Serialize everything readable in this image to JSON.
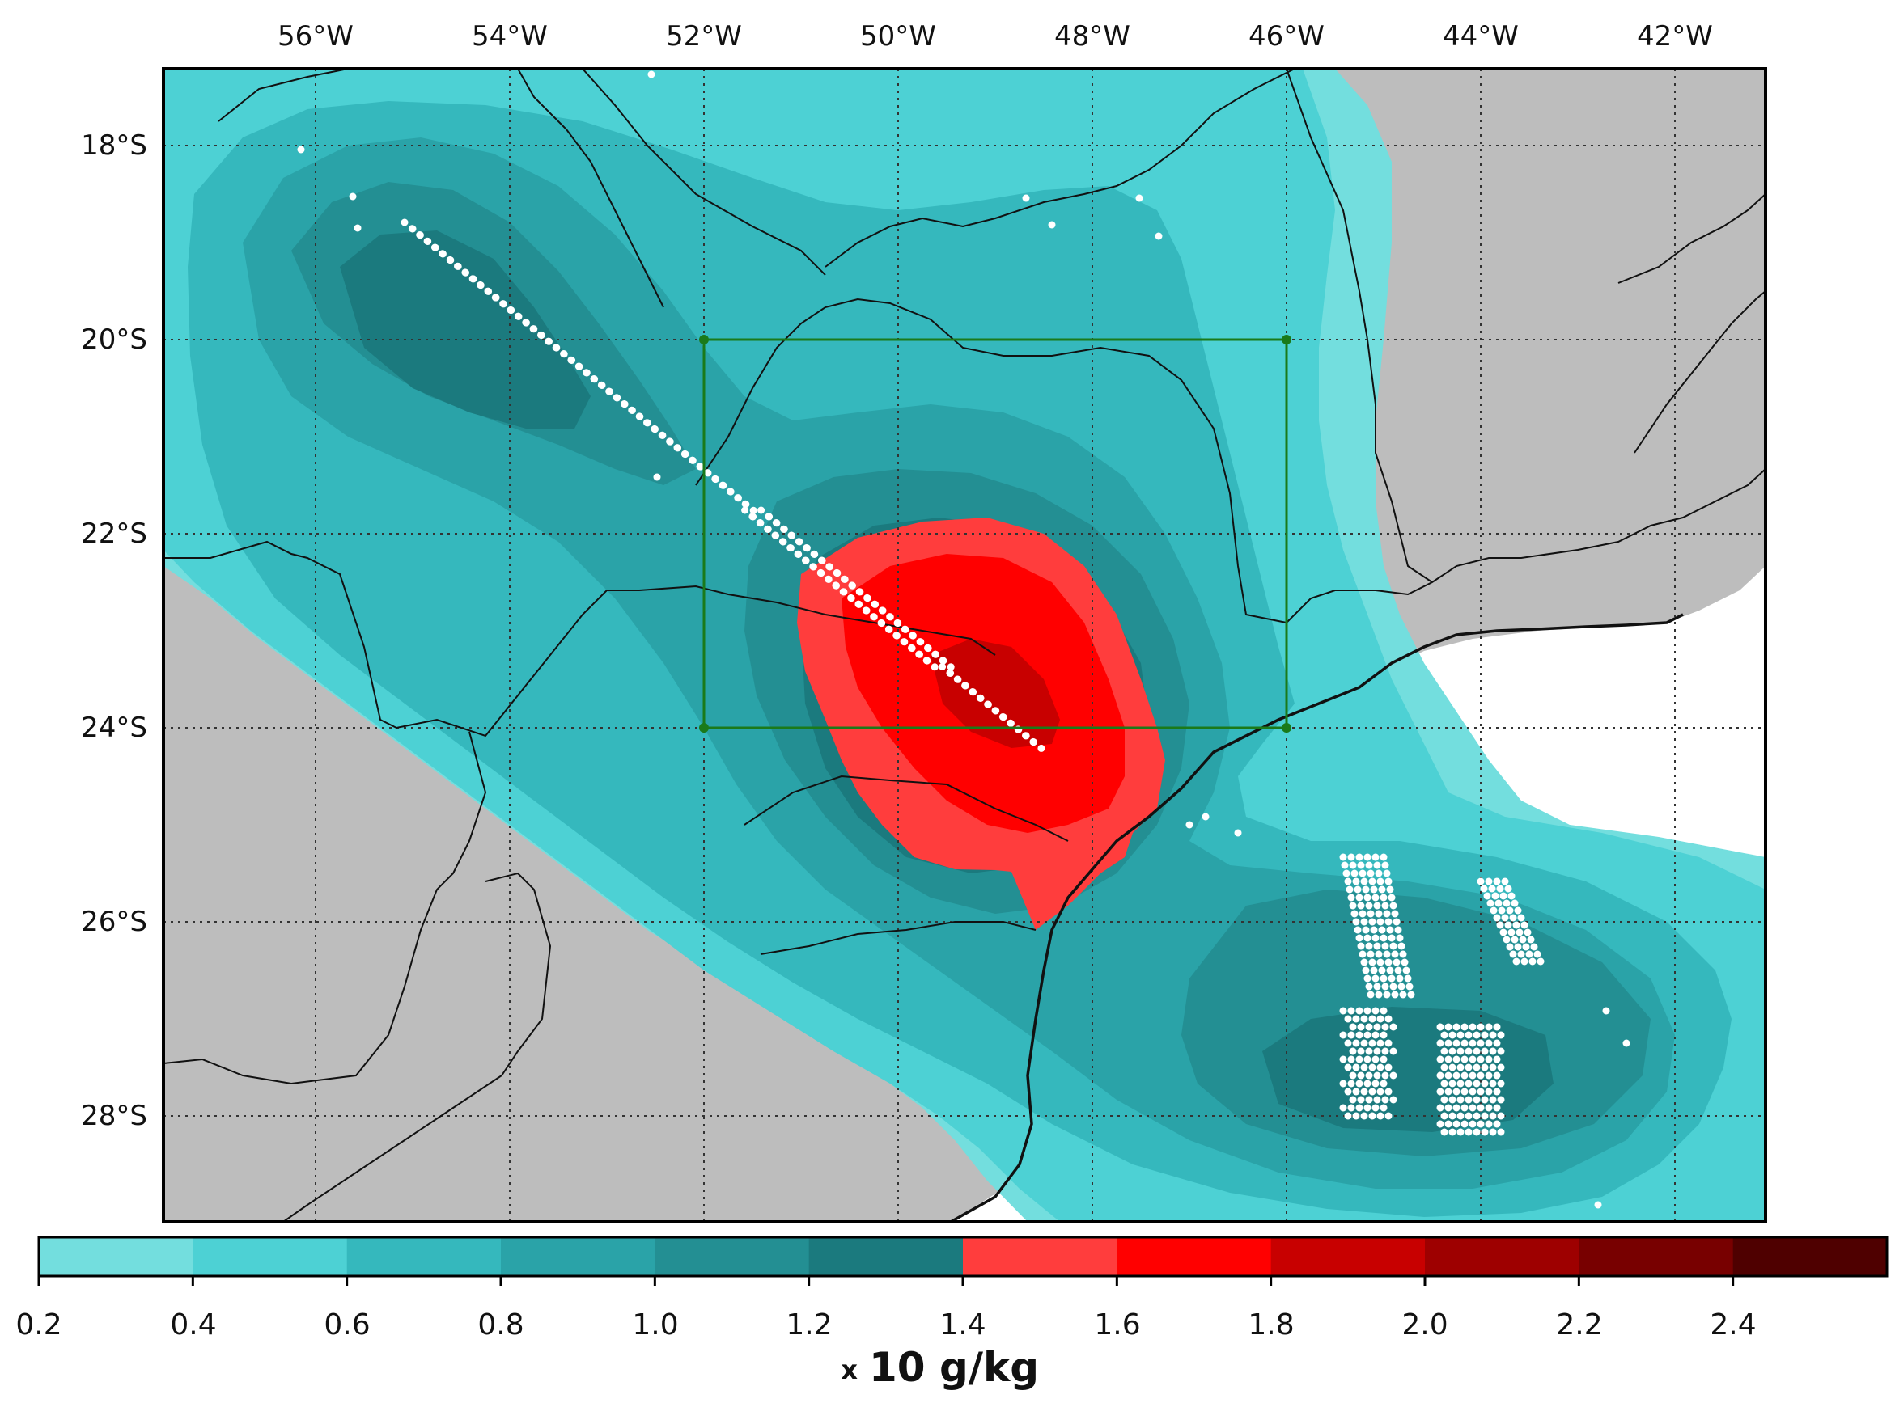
{
  "map": {
    "lon_labels": [
      "56°W",
      "54°W",
      "52°W",
      "50°W",
      "48°W",
      "46°W",
      "44°W",
      "42°W"
    ],
    "lat_labels": [
      "18°S",
      "20°S",
      "22°S",
      "24°S",
      "26°S",
      "28°S"
    ],
    "extent": {
      "lon_min": -57.6,
      "lon_max": -41.1,
      "lat_min": -29.1,
      "lat_max": -17.2
    },
    "land_color": "#bdbdbd",
    "ocean_color": "#ffffff",
    "grid": "dotted",
    "analysis_box": {
      "lon_min": -52,
      "lon_max": -46,
      "lat_min": -24,
      "lat_max": -20,
      "color": "#1a7a1a"
    },
    "significance_dots": "white stippling"
  },
  "colorbar": {
    "tick_labels": [
      "0.2",
      "0.4",
      "0.6",
      "0.8",
      "1.0",
      "1.2",
      "1.4",
      "1.6",
      "1.8",
      "2.0",
      "2.2",
      "2.4"
    ],
    "levels": [
      0.2,
      0.4,
      0.6,
      0.8,
      1.0,
      1.2,
      1.4,
      1.6,
      1.8,
      2.0,
      2.2,
      2.4,
      2.6
    ],
    "colors": [
      "#73dede",
      "#4dd1d4",
      "#35b8bd",
      "#2aa3a8",
      "#238f93",
      "#1b7a7e",
      "#ff3d3d",
      "#ff0000",
      "#c80000",
      "#9e0000",
      "#780000",
      "#4f0000"
    ],
    "unit_prefix": "x",
    "unit_label": "10 g/kg"
  }
}
